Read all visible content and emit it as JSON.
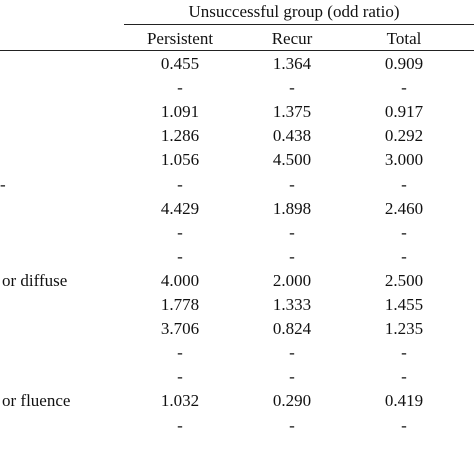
{
  "table": {
    "group_header": "Unsuccessful group (odd ratio)",
    "columns": [
      "Persistent",
      "Recur",
      "Total"
    ],
    "rows": [
      {
        "label": "",
        "values": [
          "0.455",
          "1.364",
          "0.909"
        ]
      },
      {
        "label": "",
        "values": [
          "-",
          "-",
          "-"
        ]
      },
      {
        "label": "",
        "values": [
          "1.091",
          "1.375",
          "0.917"
        ]
      },
      {
        "label": "",
        "values": [
          "1.286",
          "0.438",
          "0.292"
        ]
      },
      {
        "label": "",
        "values": [
          "1.056",
          "4.500",
          "3.000"
        ]
      },
      {
        "label": "-",
        "values": [
          "-",
          "-",
          "-"
        ]
      },
      {
        "label": "",
        "values": [
          "4.429",
          "1.898",
          "2.460"
        ]
      },
      {
        "label": "",
        "values": [
          "-",
          "-",
          "-"
        ]
      },
      {
        "label": "",
        "values": [
          "-",
          "-",
          "-"
        ]
      },
      {
        "label": "or diffuse",
        "values": [
          "4.000",
          "2.000",
          "2.500"
        ]
      },
      {
        "label": "",
        "values": [
          "1.778",
          "1.333",
          "1.455"
        ]
      },
      {
        "label": "",
        "values": [
          "3.706",
          "0.824",
          "1.235"
        ]
      },
      {
        "label": "",
        "values": [
          "-",
          "-",
          "-"
        ]
      },
      {
        "label": "",
        "values": [
          "-",
          "-",
          "-"
        ]
      },
      {
        "label": "or fluence",
        "values": [
          "1.032",
          "0.290",
          "0.419"
        ]
      },
      {
        "label": "",
        "values": [
          "-",
          "-",
          "-"
        ]
      }
    ]
  }
}
